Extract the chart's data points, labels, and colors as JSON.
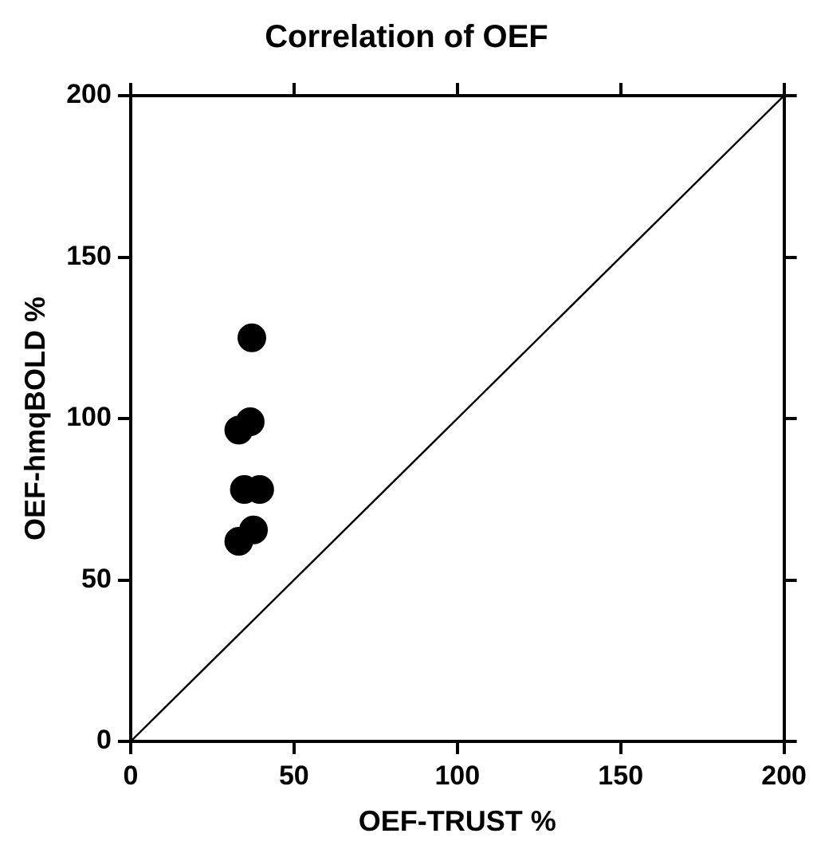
{
  "chart_data": {
    "type": "scatter",
    "title": "Correlation of OEF",
    "xlabel": "OEF-TRUST %",
    "ylabel": "OEF-hmqBOLD %",
    "xlim": [
      0,
      200
    ],
    "xticks": [
      0,
      50,
      100,
      150,
      200
    ],
    "ylim": [
      0,
      200
    ],
    "yticks": [
      0,
      50,
      100,
      150,
      200
    ],
    "grid": false,
    "legend": false,
    "series": [
      {
        "marker": "circle",
        "color": "#000000",
        "x": [
          37.1,
          36.6,
          33.1,
          34.8,
          39.5,
          37.6,
          33.1
        ],
        "values": [
          125,
          99,
          96.4,
          78,
          78,
          65.5,
          62
        ]
      },
      {
        "type": "line",
        "marker": "none",
        "color": "#000000",
        "x": [
          0,
          200
        ],
        "values": [
          0,
          200
        ]
      }
    ]
  }
}
